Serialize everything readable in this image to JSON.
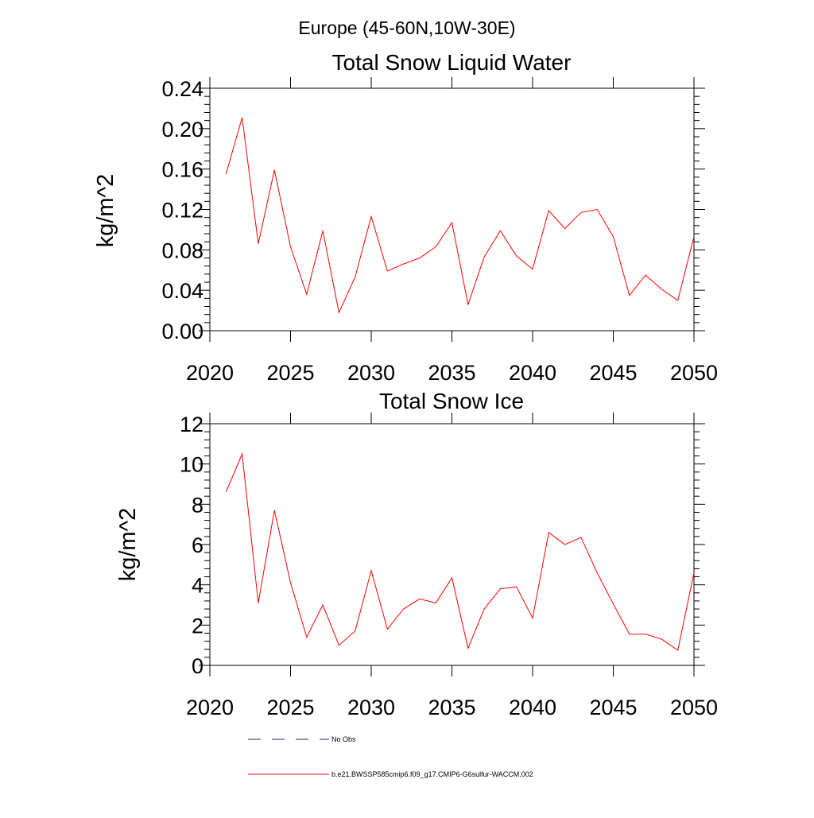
{
  "figure": {
    "suptitle": "Europe (45-60N,10W-30E)"
  },
  "chart_data": [
    {
      "type": "line",
      "title": "Total Snow Liquid Water",
      "xlabel": "",
      "ylabel": "kg/m^2",
      "xlim": [
        2020,
        2050
      ],
      "ylim": [
        0,
        0.24
      ],
      "xticks": [
        2020,
        2025,
        2030,
        2035,
        2040,
        2045,
        2050
      ],
      "xtick_labels": [
        "2020",
        "2025",
        "2030",
        "2035",
        "2040",
        "2045",
        "2050"
      ],
      "yticks": [
        0,
        0.04,
        0.08,
        0.12,
        0.16,
        0.2,
        0.24
      ],
      "ytick_labels": [
        "0.00",
        "0.04",
        "0.08",
        "0.12",
        "0.16",
        "0.20",
        "0.24"
      ],
      "grid": false,
      "series": [
        {
          "name": "b.e21.BWSSP585cmip6.f09_g17.CMIP6-G6sulfur-WACCM.002",
          "color": "#ff0000",
          "x": [
            2021,
            2022,
            2023,
            2024,
            2025,
            2026,
            2027,
            2028,
            2029,
            2030,
            2031,
            2032,
            2033,
            2034,
            2035,
            2036,
            2037,
            2038,
            2039,
            2040,
            2041,
            2042,
            2043,
            2044,
            2045,
            2046,
            2047,
            2048,
            2049,
            2050
          ],
          "y": [
            0.155,
            0.211,
            0.086,
            0.159,
            0.083,
            0.036,
            0.099,
            0.018,
            0.053,
            0.113,
            0.059,
            0.066,
            0.072,
            0.083,
            0.107,
            0.026,
            0.073,
            0.099,
            0.074,
            0.061,
            0.119,
            0.101,
            0.117,
            0.12,
            0.093,
            0.035,
            0.055,
            0.041,
            0.03,
            0.093
          ]
        }
      ]
    },
    {
      "type": "line",
      "title": "Total Snow Ice",
      "xlabel": "",
      "ylabel": "kg/m^2",
      "xlim": [
        2020,
        2050
      ],
      "ylim": [
        0,
        12
      ],
      "xticks": [
        2020,
        2025,
        2030,
        2035,
        2040,
        2045,
        2050
      ],
      "xtick_labels": [
        "2020",
        "2025",
        "2030",
        "2035",
        "2040",
        "2045",
        "2050"
      ],
      "yticks": [
        0,
        2,
        4,
        6,
        8,
        10,
        12
      ],
      "ytick_labels": [
        "0",
        "2",
        "4",
        "6",
        "8",
        "10",
        "12"
      ],
      "grid": false,
      "series": [
        {
          "name": "b.e21.BWSSP585cmip6.f09_g17.CMIP6-G6sulfur-WACCM.002",
          "color": "#ff0000",
          "x": [
            2021,
            2022,
            2023,
            2024,
            2025,
            2026,
            2027,
            2028,
            2029,
            2030,
            2031,
            2032,
            2033,
            2034,
            2035,
            2036,
            2037,
            2038,
            2039,
            2040,
            2041,
            2042,
            2043,
            2044,
            2045,
            2046,
            2047,
            2048,
            2049,
            2050
          ],
          "y": [
            8.6,
            10.5,
            3.1,
            7.7,
            4.1,
            1.4,
            3.0,
            1.0,
            1.7,
            4.7,
            1.8,
            2.8,
            3.3,
            3.1,
            4.35,
            0.85,
            2.8,
            3.8,
            3.9,
            2.35,
            6.6,
            6.0,
            6.35,
            4.6,
            3.05,
            1.55,
            1.55,
            1.3,
            0.75,
            4.6
          ]
        }
      ]
    }
  ],
  "legend": {
    "entries": [
      {
        "label": "No Obs",
        "color": "#1a237e",
        "style": "dashed"
      },
      {
        "label": "b.e21.BWSSP585cmip6.f09_g17.CMIP6-G6sulfur-WACCM.002",
        "color": "#ff0000",
        "style": "solid"
      }
    ]
  }
}
